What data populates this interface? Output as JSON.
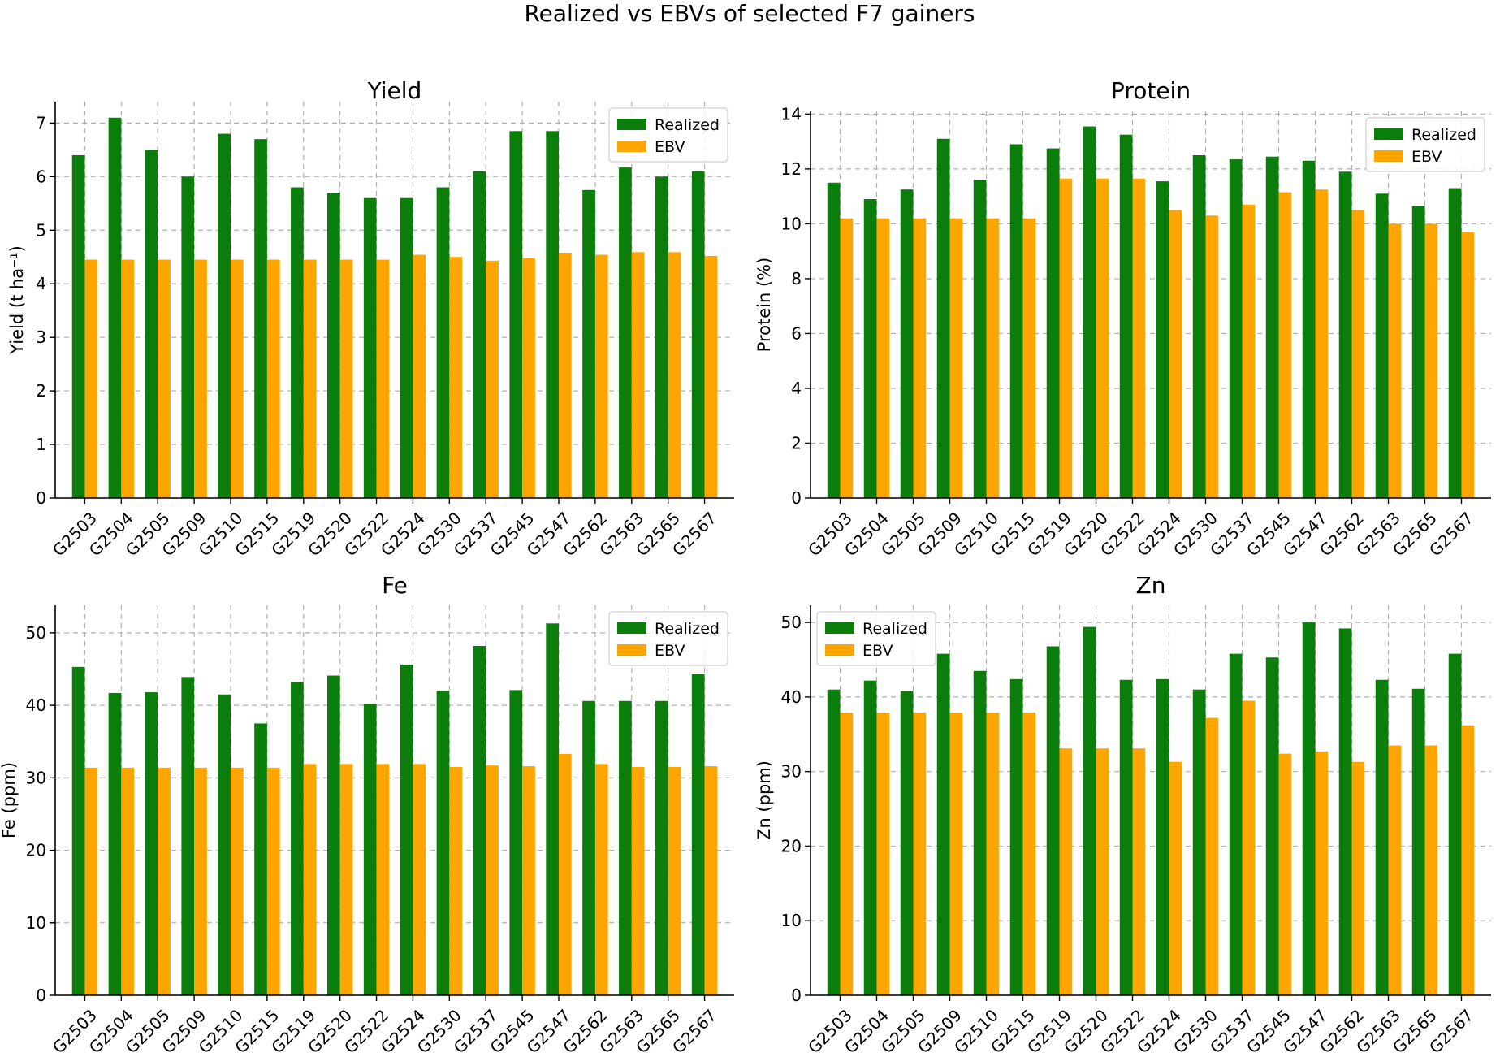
{
  "figure": {
    "title": "Realized vs EBVs of selected F7 gainers"
  },
  "colors": {
    "realized": "#0a7d0a",
    "ebv": "#ffa500"
  },
  "chart_data": [
    {
      "type": "bar",
      "id": "yield",
      "title": "Yield",
      "xlabel": "",
      "ylabel": "Yield (t ha⁻¹)",
      "ylim": [
        0,
        7.4
      ],
      "yticks": [
        0,
        1,
        2,
        3,
        4,
        5,
        6,
        7
      ],
      "grid": true,
      "legend_position": "top-right",
      "categories": [
        "G2503",
        "G2504",
        "G2505",
        "G2509",
        "G2510",
        "G2515",
        "G2519",
        "G2520",
        "G2522",
        "G2524",
        "G2530",
        "G2537",
        "G2545",
        "G2547",
        "G2562",
        "G2563",
        "G2565",
        "G2567"
      ],
      "series": [
        {
          "name": "Realized",
          "values": [
            6.4,
            7.1,
            6.5,
            6.0,
            6.8,
            6.7,
            5.8,
            5.7,
            5.6,
            5.6,
            5.8,
            6.1,
            6.85,
            6.85,
            5.75,
            6.17,
            6.0,
            6.1
          ]
        },
        {
          "name": "EBV",
          "values": [
            4.45,
            4.45,
            4.45,
            4.45,
            4.45,
            4.45,
            4.45,
            4.45,
            4.45,
            4.54,
            4.5,
            4.43,
            4.48,
            4.58,
            4.54,
            4.59,
            4.59,
            4.52
          ]
        }
      ]
    },
    {
      "type": "bar",
      "id": "protein",
      "title": "Protein",
      "xlabel": "",
      "ylabel": "Protein (%)",
      "ylim": [
        0,
        14.1
      ],
      "yticks": [
        0,
        2,
        4,
        6,
        8,
        10,
        12,
        14
      ],
      "grid": true,
      "legend_position": "top-right",
      "categories": [
        "G2503",
        "G2504",
        "G2505",
        "G2509",
        "G2510",
        "G2515",
        "G2519",
        "G2520",
        "G2522",
        "G2524",
        "G2530",
        "G2537",
        "G2545",
        "G2547",
        "G2562",
        "G2563",
        "G2565",
        "G2567"
      ],
      "series": [
        {
          "name": "Realized",
          "values": [
            11.5,
            10.9,
            11.25,
            13.1,
            11.6,
            12.9,
            12.75,
            13.55,
            13.25,
            11.55,
            12.5,
            12.35,
            12.45,
            12.3,
            11.9,
            11.1,
            10.65,
            11.3
          ]
        },
        {
          "name": "EBV",
          "values": [
            10.2,
            10.2,
            10.2,
            10.2,
            10.2,
            10.2,
            11.65,
            11.65,
            11.65,
            10.5,
            10.3,
            10.7,
            11.15,
            11.25,
            10.5,
            10.0,
            10.0,
            9.7
          ]
        }
      ]
    },
    {
      "type": "bar",
      "id": "fe",
      "title": "Fe",
      "xlabel": "",
      "ylabel": "Fe (ppm)",
      "ylim": [
        0,
        53.8
      ],
      "yticks": [
        0,
        10,
        20,
        30,
        40,
        50
      ],
      "grid": true,
      "legend_position": "top-right",
      "categories": [
        "G2503",
        "G2504",
        "G2505",
        "G2509",
        "G2510",
        "G2515",
        "G2519",
        "G2520",
        "G2522",
        "G2524",
        "G2530",
        "G2537",
        "G2545",
        "G2547",
        "G2562",
        "G2563",
        "G2565",
        "G2567"
      ],
      "series": [
        {
          "name": "Realized",
          "values": [
            45.3,
            41.7,
            41.8,
            43.9,
            41.5,
            37.5,
            43.2,
            44.1,
            40.2,
            45.6,
            42.0,
            48.2,
            42.1,
            51.3,
            40.6,
            40.6,
            40.6,
            44.3
          ]
        },
        {
          "name": "EBV",
          "values": [
            31.4,
            31.4,
            31.4,
            31.4,
            31.4,
            31.4,
            31.9,
            31.9,
            31.9,
            31.9,
            31.5,
            31.7,
            31.6,
            33.3,
            31.9,
            31.5,
            31.5,
            31.6
          ]
        }
      ]
    },
    {
      "type": "bar",
      "id": "zn",
      "title": "Zn",
      "xlabel": "",
      "ylabel": "Zn (ppm)",
      "ylim": [
        0,
        52.3
      ],
      "yticks": [
        0,
        10,
        20,
        30,
        40,
        50
      ],
      "grid": true,
      "legend_position": "top-left",
      "categories": [
        "G2503",
        "G2504",
        "G2505",
        "G2509",
        "G2510",
        "G2515",
        "G2519",
        "G2520",
        "G2522",
        "G2524",
        "G2530",
        "G2537",
        "G2545",
        "G2547",
        "G2562",
        "G2563",
        "G2565",
        "G2567"
      ],
      "series": [
        {
          "name": "Realized",
          "values": [
            41.0,
            42.2,
            40.8,
            45.8,
            43.5,
            42.4,
            46.8,
            49.4,
            42.3,
            42.4,
            41.0,
            45.8,
            45.3,
            50.0,
            49.2,
            42.3,
            41.1,
            45.8
          ]
        },
        {
          "name": "EBV",
          "values": [
            37.9,
            37.9,
            37.9,
            37.9,
            37.9,
            37.9,
            33.1,
            33.1,
            33.1,
            31.3,
            37.2,
            39.5,
            32.4,
            32.7,
            31.3,
            33.5,
            33.5,
            36.2
          ]
        }
      ]
    }
  ]
}
